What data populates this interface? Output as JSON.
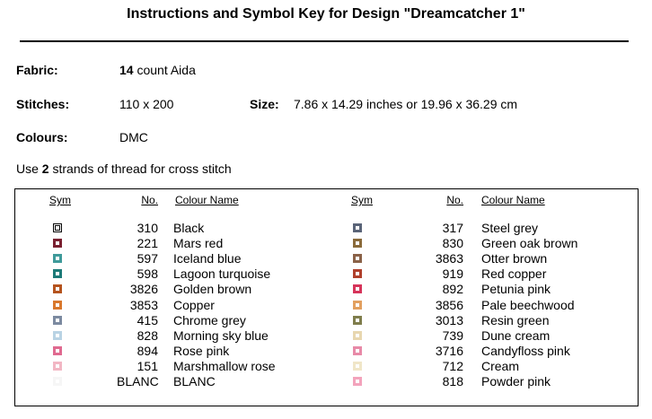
{
  "header": {
    "title": "Instructions and Symbol Key for Design \"Dreamcatcher 1\""
  },
  "fields": {
    "fabric": {
      "label": "Fabric:",
      "count": "14",
      "text": "count Aida"
    },
    "stitches": {
      "label": "Stitches:",
      "value": "110 x 200"
    },
    "size": {
      "label": "Size:",
      "value": "7.86 x 14.29 inches or 19.96 x 36.29 cm"
    },
    "colours": {
      "label": "Colours:",
      "value": "DMC"
    }
  },
  "instruction": {
    "before": "Use",
    "count": "2",
    "after": "strands of thread for cross stitch"
  },
  "table": {
    "columns": [
      "Sym",
      "No.",
      "Colour Name",
      "Sym",
      "No.",
      "Colour Name"
    ],
    "left": [
      [
        "310",
        "Black"
      ],
      [
        "221",
        "Mars red"
      ],
      [
        "597",
        "Iceland blue"
      ],
      [
        "598",
        "Lagoon turquoise"
      ],
      [
        "3826",
        "Golden brown"
      ],
      [
        "3853",
        "Copper"
      ],
      [
        "415",
        "Chrome grey"
      ],
      [
        "828",
        "Morning sky blue"
      ],
      [
        "894",
        "Rose pink"
      ],
      [
        "151",
        "Marshmallow rose"
      ],
      [
        "BLANC",
        "BLANC"
      ]
    ],
    "right": [
      [
        "317",
        "Steel grey"
      ],
      [
        "830",
        "Green oak brown"
      ],
      [
        "3863",
        "Otter brown"
      ],
      [
        "919",
        "Red copper"
      ],
      [
        "892",
        "Petunia pink"
      ],
      [
        "3856",
        "Pale beechwood"
      ],
      [
        "3013",
        "Resin green"
      ],
      [
        "739",
        "Dune cream"
      ],
      [
        "3716",
        "Candyfloss pink"
      ],
      [
        "712",
        "Cream"
      ],
      [
        "818",
        "Powder pink"
      ]
    ]
  }
}
